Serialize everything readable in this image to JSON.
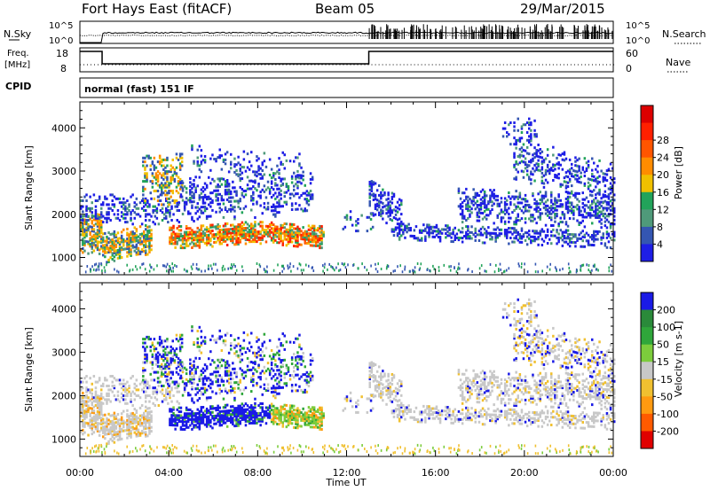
{
  "header": {
    "station": "Fort Hays East (fitACF)",
    "beam": "Beam 05",
    "date": "29/Mar/2015"
  },
  "noise_panel": {
    "left_label": "N.Sky",
    "right_label": "N.Search",
    "left_ticks": [
      "10^5",
      "10^0"
    ],
    "right_ticks": [
      "10^5",
      "10^0"
    ]
  },
  "freq_panel": {
    "label_line1": "Freq.",
    "label_line2": "[MHz]",
    "left_ticks": [
      "18",
      "8"
    ],
    "right_label": "Nave",
    "right_ticks": [
      "60",
      "0"
    ]
  },
  "cpid": {
    "label": "CPID",
    "text": "normal (fast) 151 IF"
  },
  "chart_data": [
    {
      "type": "heatmap",
      "quantity": "Power",
      "ylabel": "Slant Range [km]",
      "xlabel": "Time UT",
      "x_ticks": [
        "00:00",
        "04:00",
        "08:00",
        "12:00",
        "16:00",
        "20:00",
        "00:00"
      ],
      "y_ticks": [
        1000,
        2000,
        3000,
        4000
      ],
      "ylim": [
        600,
        4600
      ],
      "xlim_hours": [
        0,
        24
      ],
      "colorbar": {
        "label": "Power [dB]",
        "ticks": [
          "4",
          "8",
          "12",
          "16",
          "20",
          "24",
          "28"
        ],
        "colors": [
          "#1e1ee6",
          "#3456b2",
          "#4f9a7a",
          "#22a35a",
          "#f0c000",
          "#ff8c00",
          "#ff5500",
          "#ff2000",
          "#dd0000"
        ]
      }
    },
    {
      "type": "heatmap",
      "quantity": "Velocity",
      "ylabel": "Slant Range [km]",
      "xlabel": "Time UT",
      "x_ticks": [
        "00:00",
        "04:00",
        "08:00",
        "12:00",
        "16:00",
        "20:00",
        "00:00"
      ],
      "y_ticks": [
        1000,
        2000,
        3000,
        4000
      ],
      "ylim": [
        600,
        4600
      ],
      "xlim_hours": [
        0,
        24
      ],
      "colorbar": {
        "label": "Velocity [m s-1]",
        "ticks": [
          "200",
          "100",
          "50",
          "15",
          "-15",
          "-50",
          "-100",
          "-200"
        ],
        "colors": [
          "#1a1ae6",
          "#2a8a3a",
          "#2fa63a",
          "#7ccc3c",
          "#c8c8c8",
          "#f0c030",
          "#ff9a10",
          "#ff5a00",
          "#e00000"
        ]
      }
    }
  ],
  "x_axis": {
    "title": "Time UT",
    "ticks": [
      "00:00",
      "04:00",
      "08:00",
      "12:00",
      "16:00",
      "20:00",
      "00:00"
    ]
  }
}
